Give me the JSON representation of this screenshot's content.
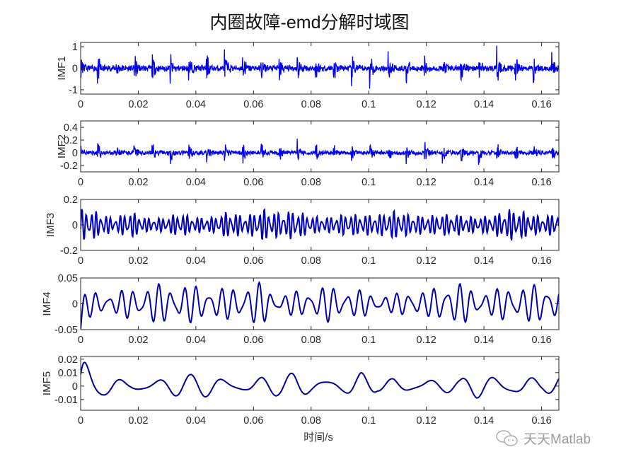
{
  "chart_data": {
    "type": "line",
    "title": "内圈故障-emd分解时域图",
    "xlabel": "时间/s",
    "xlim": [
      0,
      0.166
    ],
    "xticks": [
      0,
      0.02,
      0.04,
      0.06,
      0.08,
      0.1,
      0.12,
      0.14,
      0.16
    ],
    "xtick_labels": [
      "0",
      "0.02",
      "0.04",
      "0.06",
      "0.08",
      "0.1",
      "0.12",
      "0.14",
      "0.16"
    ],
    "line_color": "#0000ff",
    "subplots": [
      {
        "name": "IMF1",
        "ylabel": "IMF1",
        "ylim": [
          -1.2,
          1.2
        ],
        "yticks": [
          -1,
          0,
          1
        ],
        "ytick_labels": [
          "-1",
          "0",
          "1"
        ],
        "character": "impulsive high-frequency bursts, peaks up to ~1.2",
        "seed": 11,
        "amp": 0.5,
        "freq": 2200,
        "burst": true,
        "color": "#0000ee"
      },
      {
        "name": "IMF2",
        "ylabel": "IMF2",
        "ylim": [
          -0.3,
          0.5
        ],
        "yticks": [
          -0.2,
          0,
          0.2,
          0.4
        ],
        "ytick_labels": [
          "-0.2",
          "0",
          "0.2",
          "0.4"
        ],
        "character": "bursty high-frequency, peaks ~0.3",
        "seed": 23,
        "amp": 0.12,
        "freq": 1400,
        "burst": true,
        "color": "#0000ee"
      },
      {
        "name": "IMF3",
        "ylabel": "IMF3",
        "ylim": [
          -0.2,
          0.2
        ],
        "yticks": [
          -0.2,
          0,
          0.2
        ],
        "ytick_labels": [
          "-0.2",
          "0",
          "0.2"
        ],
        "character": "oscillation amplitude ~0.1",
        "seed": 37,
        "amp": 0.085,
        "freq": 600,
        "burst": false,
        "color": "#0000bb"
      },
      {
        "name": "IMF4",
        "ylabel": "IMF4",
        "ylim": [
          -0.05,
          0.05
        ],
        "yticks": [
          -0.05,
          0,
          0.05
        ],
        "ytick_labels": [
          "-0.05",
          "0",
          "0.05"
        ],
        "character": "oscillation amplitude ~0.04",
        "seed": 51,
        "amp": 0.032,
        "freq": 230,
        "burst": false,
        "color": "#0000aa"
      },
      {
        "name": "IMF5",
        "ylabel": "IMF5",
        "ylim": [
          -0.018,
          0.022
        ],
        "yticks": [
          -0.01,
          0,
          0.01,
          0.02
        ],
        "ytick_labels": [
          "-0.01",
          "0",
          "0.01",
          "0.02"
        ],
        "character": "low-frequency, large initial swing to 0.022 then ~0.008",
        "seed": 67,
        "amp": 0.007,
        "freq": 85,
        "burst": false,
        "color": "#000099"
      }
    ]
  },
  "watermark": {
    "text": "天天Matlab",
    "icon": "wechat-icon"
  }
}
